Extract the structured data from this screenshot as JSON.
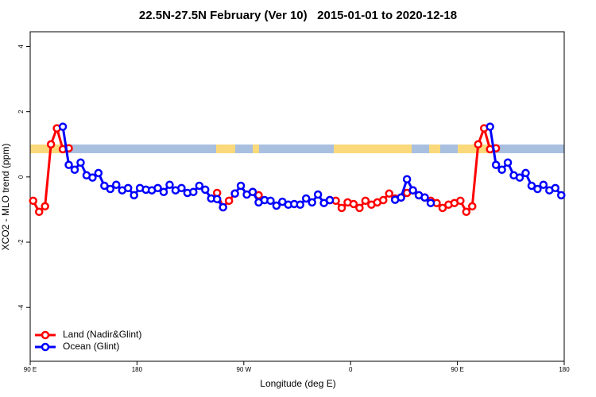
{
  "chart_data": {
    "type": "line",
    "title": "22.5N-27.5N February (Ver 10)   2015-01-01 to 2020-12-18",
    "x_label": "Longitude (deg E)",
    "y_label": "XCO2 - MLO trend (ppm)",
    "x": [
      92.5,
      97.5,
      102.5,
      107.5,
      112.5,
      117.5,
      122.5,
      127.5,
      132.5,
      137.5,
      142.5,
      147.5,
      152.5,
      157.5,
      162.5,
      167.5,
      172.5,
      177.5,
      182.5,
      187.5,
      192.5,
      197.5,
      202.5,
      207.5,
      212.5,
      217.5,
      222.5,
      227.5,
      232.5,
      237.5,
      242.5,
      247.5,
      252.5,
      257.5,
      262.5,
      267.5,
      272.5,
      277.5,
      282.5,
      287.5,
      292.5,
      297.5,
      302.5,
      307.5,
      312.5,
      317.5,
      322.5,
      327.5,
      332.5,
      337.5,
      342.5,
      347.5,
      352.5,
      357.5,
      362.5,
      367.5,
      372.5,
      377.5,
      382.5,
      387.5,
      392.5,
      397.5,
      402.5,
      407.5,
      412.5,
      417.5,
      422.5,
      427.5,
      432.5,
      437.5,
      442.5,
      447.5,
      452.5,
      457.5,
      462.5,
      467.5,
      472.5,
      477.5,
      482.5,
      487.5,
      492.5,
      497.5,
      502.5,
      507.5,
      512.5,
      517.5,
      522.5,
      527.5,
      532.5,
      537.5
    ],
    "series": [
      {
        "name": "Land (Nadir&Glint)",
        "color": "#ff0000",
        "values": [
          -0.73,
          -1.07,
          -0.9,
          1.0,
          1.49,
          0.85,
          0.88,
          null,
          null,
          null,
          null,
          null,
          null,
          null,
          null,
          null,
          null,
          null,
          null,
          null,
          null,
          null,
          null,
          null,
          null,
          null,
          null,
          null,
          null,
          null,
          null,
          -0.49,
          -0.93,
          -0.73,
          -0.51,
          null,
          null,
          -0.46,
          -0.56,
          null,
          null,
          null,
          null,
          null,
          null,
          null,
          null,
          null,
          null,
          null,
          -0.71,
          -0.73,
          -0.95,
          -0.78,
          -0.83,
          -0.95,
          -0.73,
          -0.85,
          -0.78,
          -0.71,
          -0.51,
          -0.66,
          -0.63,
          -0.49,
          -0.41,
          -0.56,
          -0.63,
          -0.73,
          -0.8,
          -0.95,
          -0.85,
          -0.8,
          -0.73,
          -1.07,
          -0.9,
          1.0,
          1.49,
          0.85,
          0.88,
          null,
          null,
          null,
          null,
          null,
          null,
          null,
          null,
          null,
          null,
          null
        ]
      },
      {
        "name": "Ocean (Glint)",
        "color": "#0000ff",
        "values": [
          null,
          null,
          null,
          null,
          null,
          1.54,
          0.37,
          0.22,
          0.44,
          0.05,
          -0.02,
          0.12,
          -0.27,
          -0.37,
          -0.24,
          -0.41,
          -0.34,
          -0.56,
          -0.34,
          -0.39,
          -0.41,
          -0.34,
          -0.46,
          -0.24,
          -0.41,
          -0.34,
          -0.49,
          -0.46,
          -0.27,
          -0.39,
          -0.66,
          -0.68,
          -0.93,
          null,
          -0.51,
          -0.27,
          -0.54,
          -0.46,
          -0.78,
          -0.71,
          -0.73,
          -0.88,
          -0.76,
          -0.85,
          -0.83,
          -0.85,
          -0.66,
          -0.78,
          -0.54,
          -0.8,
          -0.71,
          null,
          null,
          null,
          null,
          null,
          null,
          null,
          null,
          null,
          null,
          -0.7,
          -0.63,
          -0.07,
          -0.41,
          -0.56,
          -0.63,
          -0.8,
          null,
          null,
          null,
          null,
          null,
          null,
          null,
          null,
          null,
          1.54,
          0.37,
          0.22,
          0.44,
          0.05,
          -0.02,
          0.12,
          -0.27,
          -0.37,
          -0.24,
          -0.41,
          -0.34,
          -0.56
        ]
      }
    ],
    "xlim": [
      90,
      540
    ],
    "xticks": [
      {
        "value": 90,
        "label": "90 E"
      },
      180,
      {
        "value": 270,
        "label": "90 W"
      },
      {
        "value": 360,
        "label": "0"
      },
      {
        "value": 450,
        "label": "90 E"
      },
      {
        "value": 540,
        "label": "180"
      }
    ],
    "ylim": [
      -5.65,
      4.45
    ],
    "yticks": [
      -4,
      -2,
      0,
      2,
      4
    ],
    "legend": "bottom-left"
  }
}
